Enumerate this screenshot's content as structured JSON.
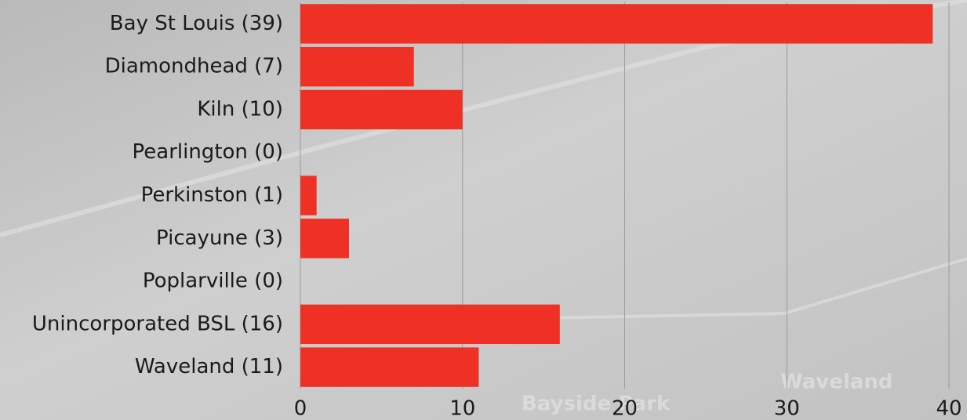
{
  "chart_data": {
    "type": "barh",
    "categories": [
      "Bay St Louis (39)",
      "Diamondhead (7)",
      "Kiln (10)",
      "Pearlington (0)",
      "Perkinston (1)",
      "Picayune (3)",
      "Poplarville (0)",
      "Unincorporated BSL (16)",
      "Waveland (11)"
    ],
    "values": [
      39,
      7,
      10,
      0,
      1,
      3,
      0,
      16,
      11
    ],
    "color": "#ee3124",
    "xlim": [
      0,
      40
    ],
    "xticks": [
      0,
      10,
      20,
      30,
      40
    ],
    "grid": true
  },
  "map_labels": [
    "Bayside Park",
    "Waveland"
  ]
}
